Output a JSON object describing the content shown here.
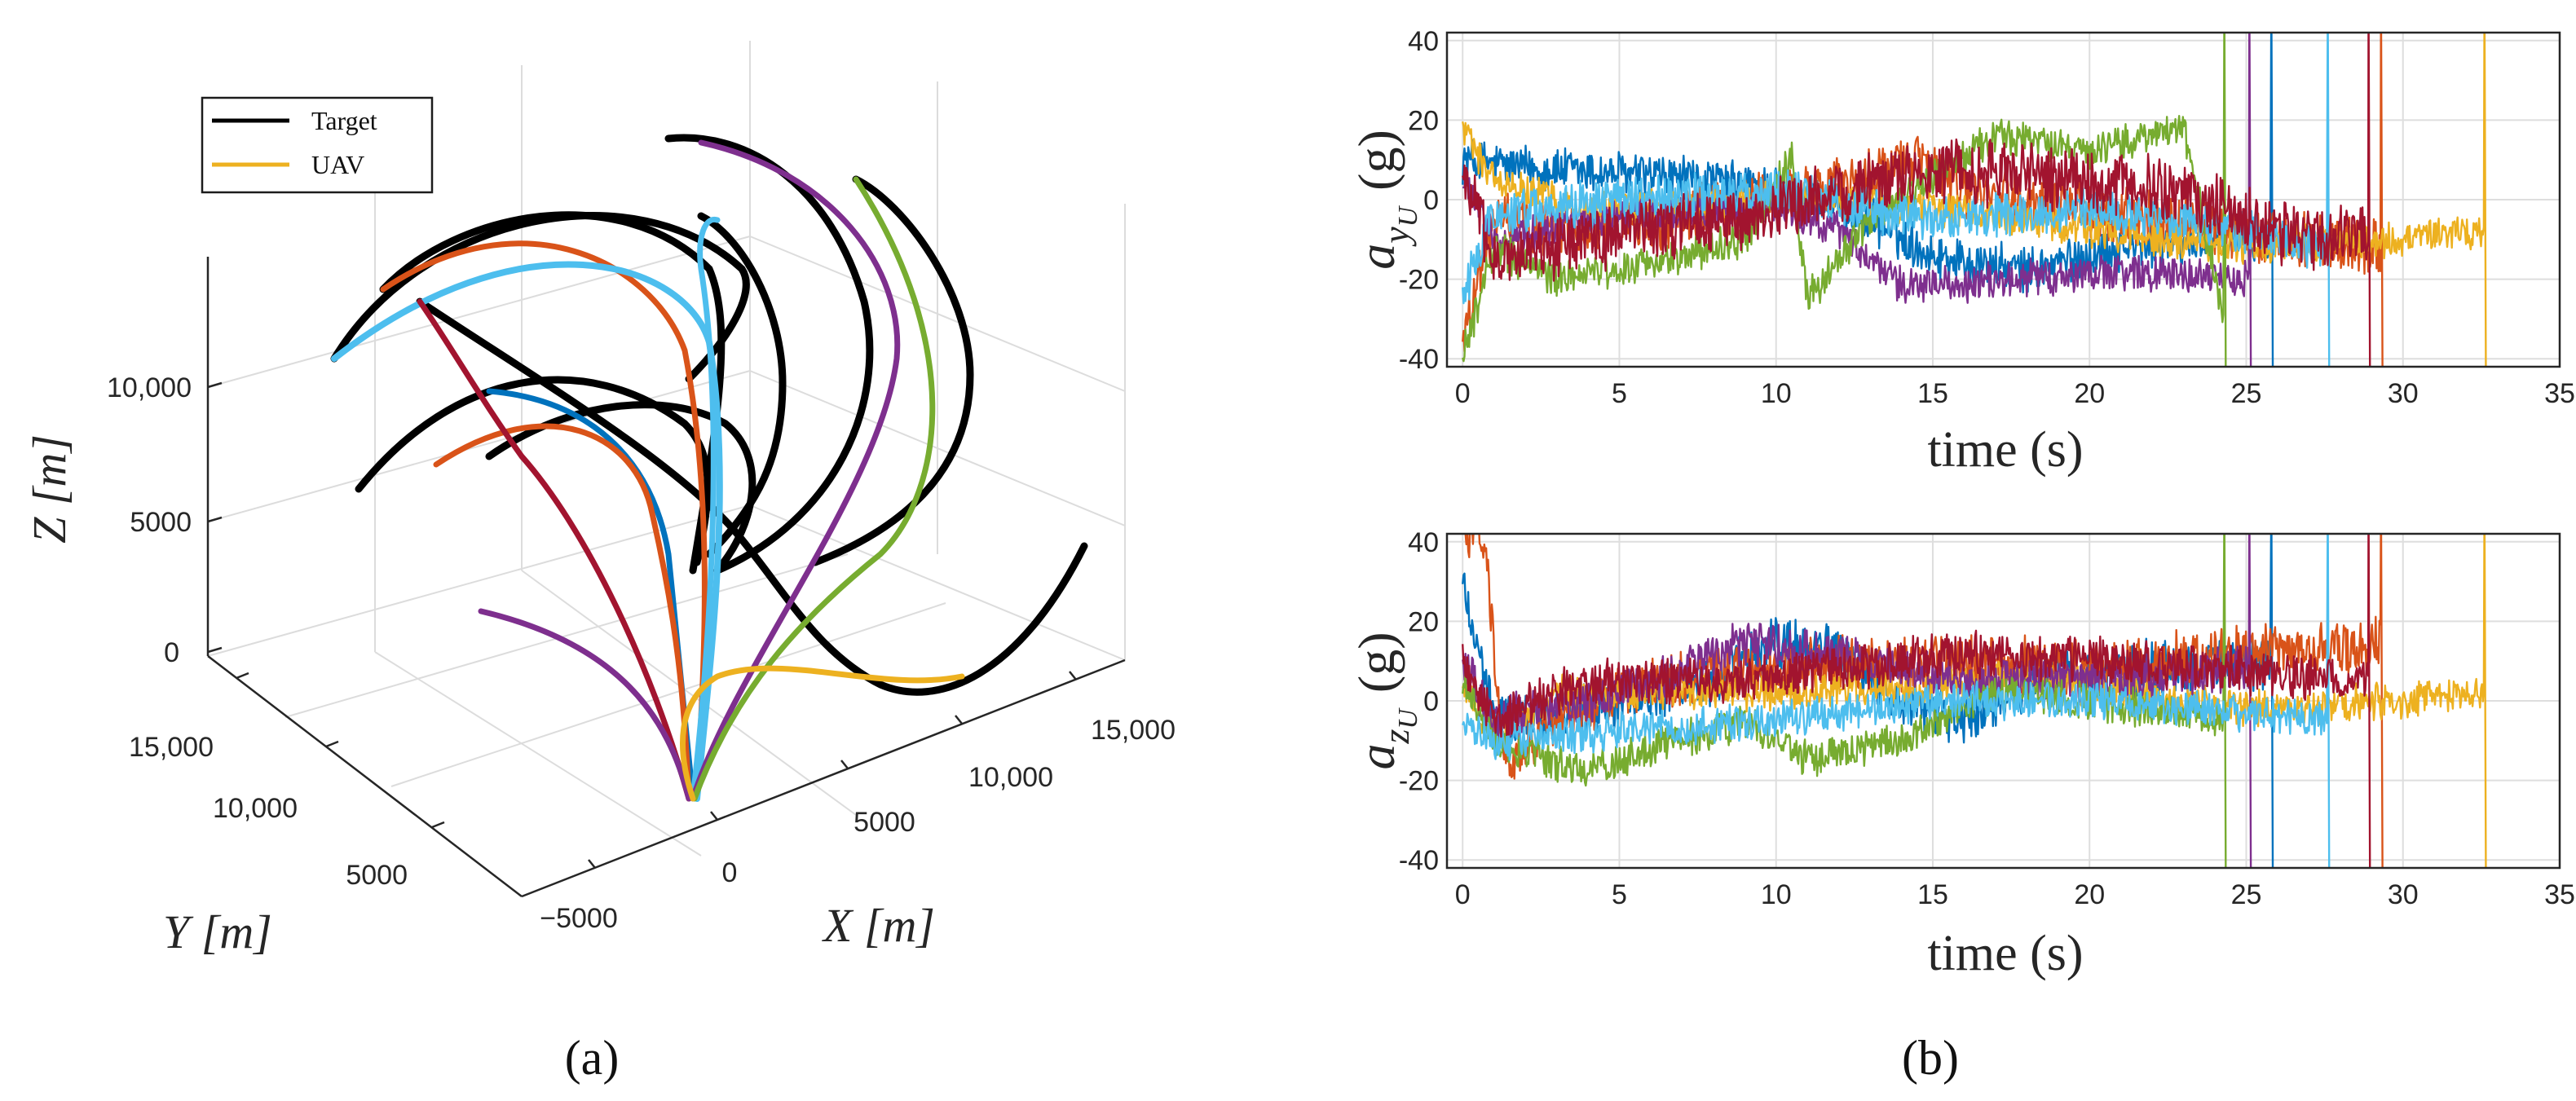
{
  "chart_data": [
    {
      "type": "line",
      "panel_label": "(a)",
      "projection": "3d",
      "xlabel": "X [m]",
      "ylabel": "Y [m]",
      "zlabel": "Z [m]",
      "x_ticks": [
        "−5000",
        "0",
        "5000",
        "10,000",
        "15,000"
      ],
      "y_ticks": [
        "5000",
        "10,000",
        "15,000"
      ],
      "z_ticks": [
        "0",
        "5000",
        "10,000"
      ],
      "legend": [
        {
          "label": "Target",
          "color": "#000000"
        },
        {
          "label": "UAV",
          "color": "#EDB120"
        }
      ],
      "series_colors": [
        "#0072BD",
        "#D95319",
        "#EDB120",
        "#7E2F8E",
        "#77AC30",
        "#4DBEEE",
        "#A2142F"
      ],
      "target_color": "#000000",
      "legend_position": "top-left"
    },
    {
      "type": "line",
      "panel_label": "(b)",
      "xlabel": "time (s)",
      "ylabel_main": "a",
      "ylabel_sub": "y",
      "ylabel_subsub": "U",
      "ylabel_unit": "(g)",
      "xlim": [
        -0.5,
        35
      ],
      "ylim": [
        -42,
        42
      ],
      "x_ticks": [
        0,
        5,
        10,
        15,
        20,
        25,
        30,
        35
      ],
      "y_ticks": [
        -40,
        -20,
        0,
        20,
        40
      ],
      "grid": true,
      "series": [
        {
          "name": "blue",
          "color": "#0072BD",
          "end": 25.8,
          "mean": [
            [
              0,
              10
            ],
            [
              2,
              8
            ],
            [
              6,
              6
            ],
            [
              10,
              3
            ],
            [
              13,
              -5
            ],
            [
              15,
              -14
            ],
            [
              18,
              -18
            ],
            [
              21,
              -12
            ],
            [
              25,
              -10
            ]
          ],
          "noise": 5
        },
        {
          "name": "orange",
          "color": "#D95319",
          "end": 29.3,
          "mean": [
            [
              0,
              -35
            ],
            [
              1,
              -5
            ],
            [
              4,
              -8
            ],
            [
              8,
              -3
            ],
            [
              12,
              4
            ],
            [
              14.5,
              10
            ],
            [
              16,
              2
            ],
            [
              22,
              -5
            ],
            [
              26,
              -10
            ],
            [
              29.3,
              -12
            ]
          ],
          "noise": 6
        },
        {
          "name": "yellow",
          "color": "#EDB120",
          "end": 32.6,
          "mean": [
            [
              0,
              18
            ],
            [
              1,
              5
            ],
            [
              4,
              -3
            ],
            [
              10,
              0
            ],
            [
              15,
              -2
            ],
            [
              20,
              -8
            ],
            [
              25,
              -12
            ],
            [
              30,
              -10
            ],
            [
              32.6,
              -8
            ]
          ],
          "noise": 4
        },
        {
          "name": "purple",
          "color": "#7E2F8E",
          "end": 25.1,
          "mean": [
            [
              0,
              5
            ],
            [
              1,
              -10
            ],
            [
              5,
              -4
            ],
            [
              10,
              -2
            ],
            [
              12,
              -8
            ],
            [
              14,
              -22
            ],
            [
              18,
              -20
            ],
            [
              21,
              -18
            ],
            [
              25.1,
              -20
            ]
          ],
          "noise": 4
        },
        {
          "name": "green",
          "color": "#77AC30",
          "end": 24.3,
          "mean": [
            [
              0,
              -40
            ],
            [
              1,
              -12
            ],
            [
              3,
              -20
            ],
            [
              6,
              -16
            ],
            [
              9,
              -10
            ],
            [
              10.5,
              10
            ],
            [
              11,
              -25
            ],
            [
              13,
              -5
            ],
            [
              17,
              16
            ],
            [
              20,
              12
            ],
            [
              23,
              18
            ],
            [
              24.3,
              -30
            ]
          ],
          "noise": 4
        },
        {
          "name": "cyan",
          "color": "#4DBEEE",
          "end": 27.6,
          "mean": [
            [
              0,
              -25
            ],
            [
              1,
              -3
            ],
            [
              5,
              0
            ],
            [
              10,
              2
            ],
            [
              15,
              -5
            ],
            [
              20,
              -2
            ],
            [
              25,
              -8
            ],
            [
              27.6,
              -12
            ]
          ],
          "noise": 5
        },
        {
          "name": "darkred",
          "color": "#A2142F",
          "end": 28.9,
          "mean": [
            [
              0,
              8
            ],
            [
              1,
              -15
            ],
            [
              4,
              -10
            ],
            [
              8,
              -6
            ],
            [
              12,
              2
            ],
            [
              15,
              8
            ],
            [
              20,
              5
            ],
            [
              23,
              2
            ],
            [
              26,
              -8
            ],
            [
              28.9,
              -10
            ]
          ],
          "noise": 7
        }
      ]
    },
    {
      "type": "line",
      "xlabel": "time (s)",
      "ylabel_main": "a",
      "ylabel_sub": "z",
      "ylabel_subsub": "U",
      "ylabel_unit": "(g)",
      "xlim": [
        -0.5,
        35
      ],
      "ylim": [
        -42,
        42
      ],
      "x_ticks": [
        0,
        5,
        10,
        15,
        20,
        25,
        30,
        35
      ],
      "y_ticks": [
        -40,
        -20,
        0,
        20,
        40
      ],
      "grid": true,
      "series": [
        {
          "name": "blue",
          "color": "#0072BD",
          "end": 25.8,
          "mean": [
            [
              0,
              30
            ],
            [
              1,
              -5
            ],
            [
              4,
              -2
            ],
            [
              8,
              5
            ],
            [
              10,
              15
            ],
            [
              12,
              12
            ],
            [
              14,
              0
            ],
            [
              16,
              -5
            ],
            [
              18,
              5
            ],
            [
              22,
              8
            ],
            [
              25.8,
              10
            ]
          ],
          "noise": 6
        },
        {
          "name": "orange",
          "color": "#D95319",
          "end": 29.3,
          "mean": [
            [
              0,
              42
            ],
            [
              0.7,
              40
            ],
            [
              1.3,
              -15
            ],
            [
              3,
              -5
            ],
            [
              6,
              5
            ],
            [
              10,
              8
            ],
            [
              15,
              10
            ],
            [
              20,
              8
            ],
            [
              25,
              12
            ],
            [
              29.3,
              15
            ]
          ],
          "noise": 6
        },
        {
          "name": "yellow",
          "color": "#EDB120",
          "end": 32.6,
          "mean": [
            [
              0,
              5
            ],
            [
              1,
              -10
            ],
            [
              3,
              2
            ],
            [
              8,
              2
            ],
            [
              15,
              3
            ],
            [
              18,
              6
            ],
            [
              20,
              3
            ],
            [
              25,
              -2
            ],
            [
              30,
              0
            ],
            [
              32.6,
              2
            ]
          ],
          "noise": 4
        },
        {
          "name": "purple",
          "color": "#7E2F8E",
          "end": 25.1,
          "mean": [
            [
              0,
              10
            ],
            [
              1,
              -5
            ],
            [
              4,
              0
            ],
            [
              7,
              8
            ],
            [
              9,
              15
            ],
            [
              12,
              12
            ],
            [
              16,
              5
            ],
            [
              20,
              5
            ],
            [
              25.1,
              8
            ]
          ],
          "noise": 5
        },
        {
          "name": "green",
          "color": "#77AC30",
          "end": 24.3,
          "mean": [
            [
              0,
              5
            ],
            [
              1,
              -10
            ],
            [
              4,
              -18
            ],
            [
              6,
              -12
            ],
            [
              9,
              -5
            ],
            [
              11,
              -15
            ],
            [
              14,
              -10
            ],
            [
              17,
              2
            ],
            [
              20,
              0
            ],
            [
              24.3,
              -5
            ]
          ],
          "noise": 4
        },
        {
          "name": "cyan",
          "color": "#4DBEEE",
          "end": 27.6,
          "mean": [
            [
              0,
              -5
            ],
            [
              1,
              -10
            ],
            [
              4,
              -8
            ],
            [
              10,
              -5
            ],
            [
              15,
              0
            ],
            [
              20,
              0
            ],
            [
              25,
              -3
            ],
            [
              27.6,
              -5
            ]
          ],
          "noise": 4
        },
        {
          "name": "darkred",
          "color": "#A2142F",
          "end": 28.9,
          "mean": [
            [
              0,
              10
            ],
            [
              1,
              -5
            ],
            [
              4,
              5
            ],
            [
              8,
              5
            ],
            [
              12,
              8
            ],
            [
              16,
              12
            ],
            [
              20,
              10
            ],
            [
              24,
              8
            ],
            [
              28.9,
              5
            ]
          ],
          "noise": 5
        }
      ]
    }
  ]
}
